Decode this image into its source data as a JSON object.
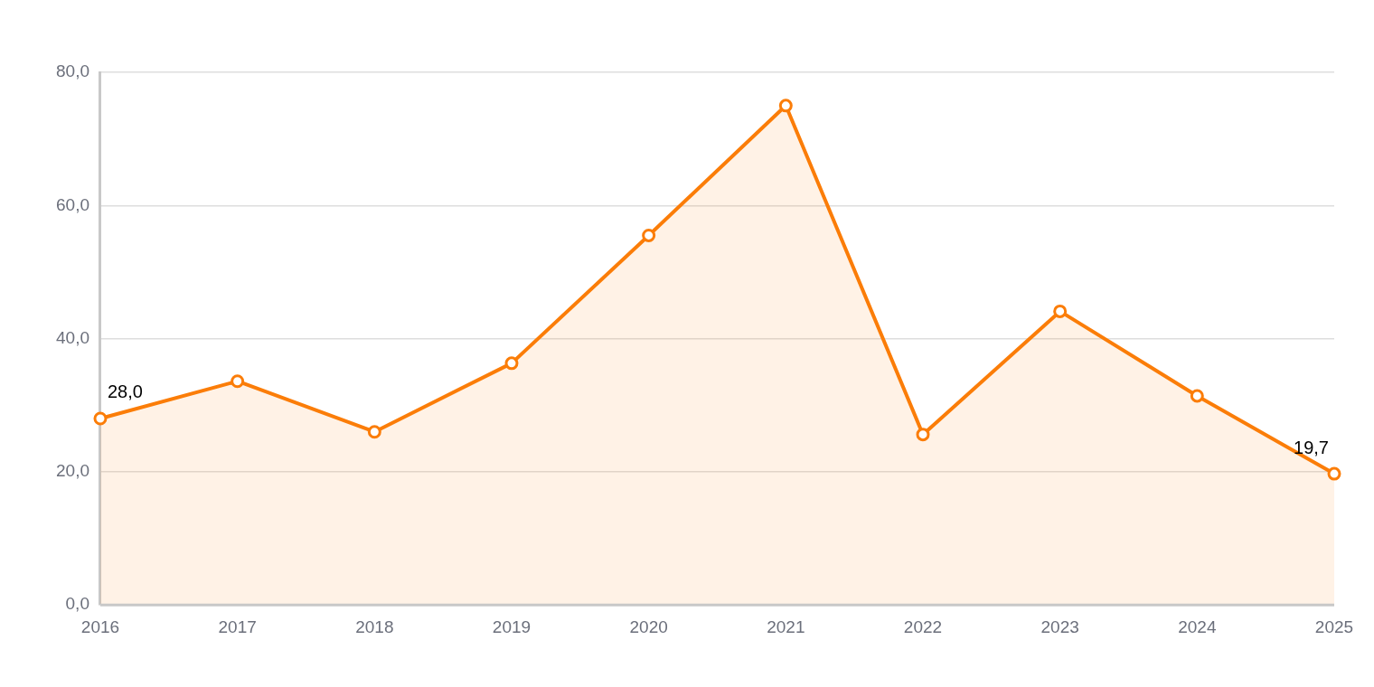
{
  "chart_data": {
    "type": "area",
    "categories": [
      "2016",
      "2017",
      "2018",
      "2019",
      "2020",
      "2021",
      "2022",
      "2023",
      "2024",
      "2025"
    ],
    "series": [
      {
        "color": "#fb7d08",
        "values": [
          28.0,
          33.6,
          26.0,
          36.3,
          55.5,
          75.0,
          25.6,
          44.1,
          31.4,
          19.7
        ],
        "value_labels": [
          "28,0",
          null,
          null,
          null,
          null,
          null,
          null,
          null,
          null,
          "19,7"
        ]
      }
    ],
    "ylim": [
      0,
      80
    ],
    "yticks": [
      {
        "value": 0,
        "label": "0,0"
      },
      {
        "value": 20,
        "label": "20,0"
      },
      {
        "value": 40,
        "label": "40,0"
      },
      {
        "value": 60,
        "label": "60,0"
      },
      {
        "value": 80,
        "label": "80,0"
      }
    ],
    "grid": "y",
    "legend": false,
    "marker": "circle",
    "line_style": "solid"
  }
}
